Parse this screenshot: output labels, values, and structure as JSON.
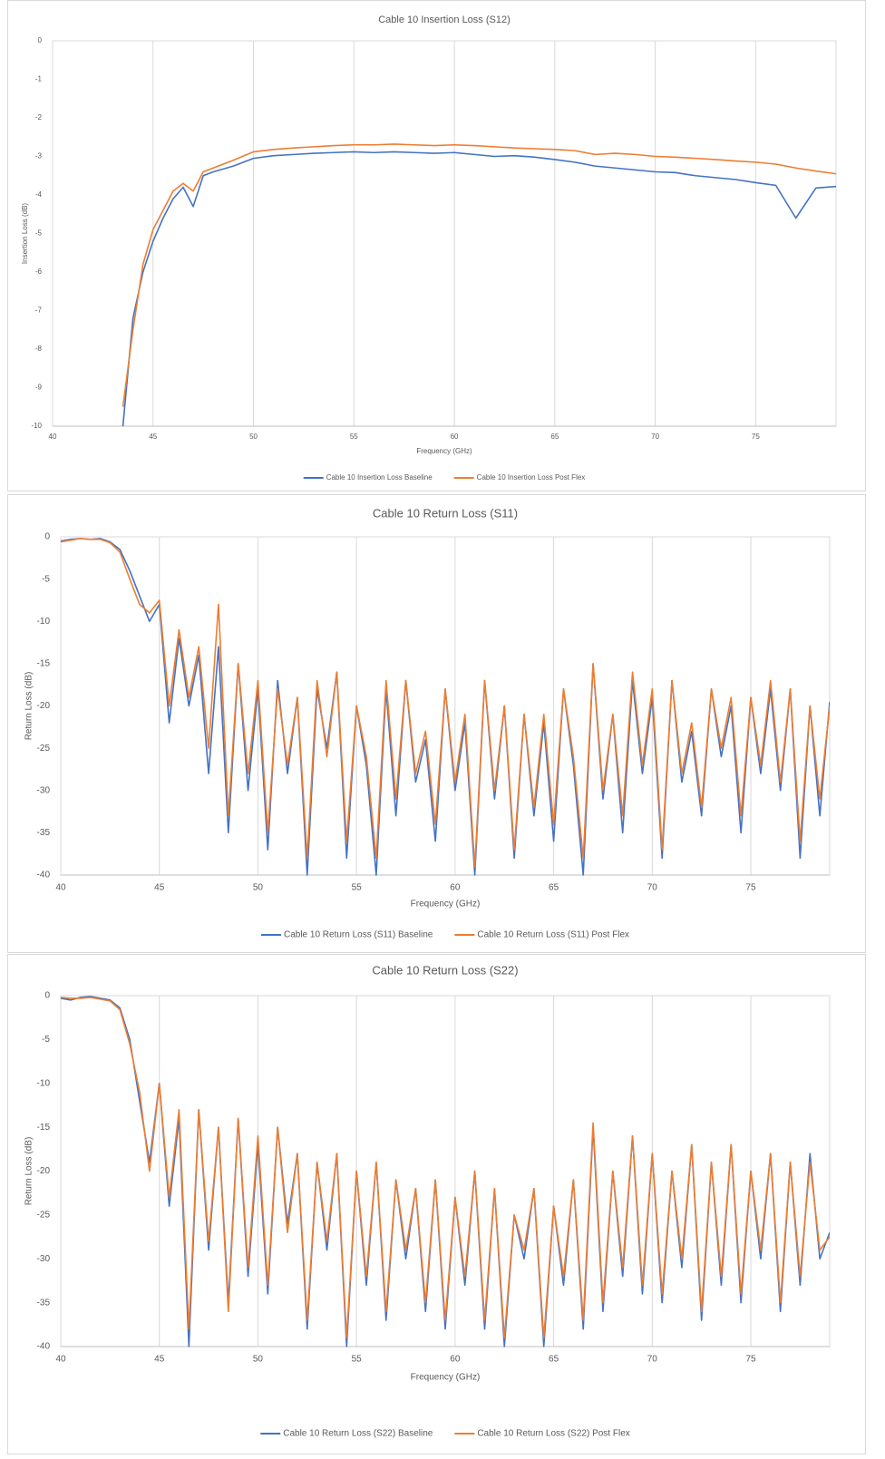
{
  "chart_data": [
    {
      "type": "line",
      "title": "Cable 10 Insertion Loss (S12)",
      "x_label": "Frequency (GHz)",
      "y_label": "Insertion Loss (dB)",
      "xlim": [
        40,
        79
      ],
      "xticks": [
        40,
        45,
        50,
        55,
        60,
        65,
        70,
        75
      ],
      "ylim": [
        -10,
        0
      ],
      "yticks": [
        0,
        -1,
        -2,
        -3,
        -4,
        -5,
        -6,
        -7,
        -8,
        -9,
        -10
      ],
      "grid": "x",
      "x": [
        43.5,
        44,
        44.5,
        45,
        45.5,
        46,
        46.5,
        47,
        47.5,
        48,
        49,
        50,
        51,
        52,
        53,
        54,
        55,
        56,
        57,
        58,
        59,
        60,
        61,
        62,
        63,
        64,
        65,
        66,
        67,
        68,
        69,
        70,
        71,
        72,
        73,
        74,
        75,
        76,
        77,
        78,
        79
      ],
      "series": [
        {
          "name": "Cable 10 Insertion Loss Baseline",
          "color": "#4472c4",
          "values": [
            -10,
            -7.2,
            -6,
            -5.2,
            -4.6,
            -4.1,
            -3.8,
            -4.3,
            -3.5,
            -3.4,
            -3.25,
            -3.05,
            -2.98,
            -2.95,
            -2.92,
            -2.9,
            -2.88,
            -2.9,
            -2.88,
            -2.9,
            -2.92,
            -2.9,
            -2.95,
            -3.0,
            -2.98,
            -3.02,
            -3.08,
            -3.15,
            -3.25,
            -3.3,
            -3.35,
            -3.4,
            -3.42,
            -3.5,
            -3.55,
            -3.6,
            -3.68,
            -3.75,
            -4.6,
            -3.82,
            -3.78
          ]
        },
        {
          "name": "Cable 10 Insertion Loss Post Flex",
          "color": "#ed7d31",
          "values": [
            -9.5,
            -7.5,
            -5.8,
            -4.9,
            -4.4,
            -3.9,
            -3.7,
            -3.9,
            -3.4,
            -3.3,
            -3.1,
            -2.88,
            -2.82,
            -2.78,
            -2.75,
            -2.72,
            -2.7,
            -2.7,
            -2.68,
            -2.7,
            -2.72,
            -2.7,
            -2.72,
            -2.75,
            -2.78,
            -2.8,
            -2.82,
            -2.85,
            -2.95,
            -2.92,
            -2.95,
            -3.0,
            -3.02,
            -3.05,
            -3.08,
            -3.12,
            -3.15,
            -3.2,
            -3.3,
            -3.38,
            -3.45
          ]
        }
      ]
    },
    {
      "type": "line",
      "title": "Cable 10 Return Loss (S11)",
      "x_label": "Frequency (GHz)",
      "y_label": "Return Loss (dB)",
      "xlim": [
        40,
        79
      ],
      "xticks": [
        40,
        45,
        50,
        55,
        60,
        65,
        70,
        75
      ],
      "ylim": [
        -40,
        0
      ],
      "yticks": [
        0,
        -5,
        -10,
        -15,
        -20,
        -25,
        -30,
        -35,
        -40
      ],
      "grid": "x",
      "x": [
        40,
        40.5,
        41,
        41.5,
        42,
        42.5,
        43,
        43.5,
        44,
        44.5,
        45,
        45.5,
        46,
        46.5,
        47,
        47.5,
        48,
        48.5,
        49,
        49.5,
        50,
        50.5,
        51,
        51.5,
        52,
        52.5,
        53,
        53.5,
        54,
        54.5,
        55,
        55.5,
        56,
        56.5,
        57,
        57.5,
        58,
        58.5,
        59,
        59.5,
        60,
        60.5,
        61,
        61.5,
        62,
        62.5,
        63,
        63.5,
        64,
        64.5,
        65,
        65.5,
        66,
        66.5,
        67,
        67.5,
        68,
        68.5,
        69,
        69.5,
        70,
        70.5,
        71,
        71.5,
        72,
        72.5,
        73,
        73.5,
        74,
        74.5,
        75,
        75.5,
        76,
        76.5,
        77,
        77.5,
        78,
        78.5,
        79
      ],
      "series": [
        {
          "name": "Cable 10 Return Loss (S11) Baseline",
          "color": "#4472c4",
          "values": [
            -0.5,
            -0.3,
            -0.2,
            -0.3,
            -0.2,
            -0.6,
            -1.5,
            -4,
            -7,
            -10,
            -8,
            -22,
            -12,
            -20,
            -14,
            -28,
            -13,
            -35,
            -15,
            -30,
            -18,
            -37,
            -17,
            -28,
            -19,
            -40,
            -18,
            -25,
            -16,
            -38,
            -20,
            -27,
            -40,
            -18,
            -33,
            -17,
            -29,
            -24,
            -36,
            -18,
            -30,
            -22,
            -40,
            -17,
            -31,
            -20,
            -38,
            -21,
            -33,
            -22,
            -36,
            -18,
            -27,
            -40,
            -15,
            -31,
            -21,
            -35,
            -17,
            -28,
            -19,
            -38,
            -17,
            -29,
            -23,
            -33,
            -18,
            -26,
            -20,
            -35,
            -19,
            -28,
            -18,
            -30,
            -18,
            -38,
            -20,
            -33,
            -19.5
          ]
        },
        {
          "name": "Cable 10 Return Loss (S11) Post Flex",
          "color": "#ed7d31",
          "values": [
            -0.6,
            -0.4,
            -0.2,
            -0.3,
            -0.3,
            -0.7,
            -1.8,
            -5,
            -8,
            -9,
            -7.5,
            -20,
            -11,
            -19,
            -13,
            -25,
            -8,
            -33,
            -15,
            -28,
            -17,
            -35,
            -18,
            -27,
            -19,
            -38,
            -17,
            -26,
            -16,
            -36,
            -20,
            -26,
            -38,
            -17,
            -31,
            -17,
            -28,
            -23,
            -34,
            -18,
            -29,
            -21,
            -39,
            -17,
            -30,
            -20,
            -37,
            -21,
            -32,
            -21,
            -34,
            -18,
            -26,
            -38,
            -15,
            -30,
            -21,
            -33,
            -16,
            -27,
            -18,
            -37,
            -17,
            -28,
            -22,
            -32,
            -18,
            -25,
            -19,
            -33,
            -19,
            -27,
            -17,
            -29,
            -18,
            -36,
            -20,
            -31,
            -20
          ]
        }
      ]
    },
    {
      "type": "line",
      "title": "Cable 10 Return Loss (S22)",
      "x_label": "Frequency (GHz)",
      "y_label": "Return Loss (dB)",
      "xlim": [
        40,
        79
      ],
      "xticks": [
        40,
        45,
        50,
        55,
        60,
        65,
        70,
        75
      ],
      "ylim": [
        -40,
        0
      ],
      "yticks": [
        0,
        -5,
        -10,
        -15,
        -20,
        -25,
        -30,
        -35,
        -40
      ],
      "grid": "x",
      "x": [
        40,
        40.5,
        41,
        41.5,
        42,
        42.5,
        43,
        43.5,
        44,
        44.5,
        45,
        45.5,
        46,
        46.5,
        47,
        47.5,
        48,
        48.5,
        49,
        49.5,
        50,
        50.5,
        51,
        51.5,
        52,
        52.5,
        53,
        53.5,
        54,
        54.5,
        55,
        55.5,
        56,
        56.5,
        57,
        57.5,
        58,
        58.5,
        59,
        59.5,
        60,
        60.5,
        61,
        61.5,
        62,
        62.5,
        63,
        63.5,
        64,
        64.5,
        65,
        65.5,
        66,
        66.5,
        67,
        67.5,
        68,
        68.5,
        69,
        69.5,
        70,
        70.5,
        71,
        71.5,
        72,
        72.5,
        73,
        73.5,
        74,
        74.5,
        75,
        75.5,
        76,
        76.5,
        77,
        77.5,
        78,
        78.5,
        79
      ],
      "series": [
        {
          "name": "Cable 10 Return Loss (S22) Baseline",
          "color": "#4472c4",
          "values": [
            -0.3,
            -0.5,
            -0.2,
            -0.1,
            -0.3,
            -0.5,
            -1.4,
            -5,
            -12,
            -19,
            -10,
            -24,
            -14,
            -40,
            -13,
            -29,
            -15,
            -35,
            -14,
            -32,
            -17,
            -34,
            -15,
            -26,
            -18,
            -38,
            -19,
            -29,
            -18,
            -40,
            -20,
            -33,
            -19,
            -37,
            -21,
            -30,
            -22,
            -36,
            -21,
            -38,
            -23,
            -33,
            -20,
            -38,
            -22,
            -40,
            -25,
            -30,
            -22,
            -40,
            -24,
            -33,
            -21,
            -38,
            -15,
            -36,
            -20,
            -32,
            -16,
            -34,
            -18,
            -35,
            -20,
            -31,
            -17,
            -37,
            -19,
            -33,
            -17,
            -35,
            -20,
            -30,
            -18,
            -36,
            -19,
            -33,
            -18,
            -30,
            -27
          ]
        },
        {
          "name": "Cable 10 Return Loss (S22) Post Flex",
          "color": "#ed7d31",
          "values": [
            -0.2,
            -0.3,
            -0.3,
            -0.2,
            -0.4,
            -0.6,
            -1.6,
            -5.5,
            -11,
            -20,
            -10,
            -23,
            -13,
            -38,
            -13,
            -28,
            -15,
            -36,
            -14,
            -31,
            -16,
            -33,
            -15,
            -27,
            -18,
            -37,
            -19,
            -28,
            -18,
            -39,
            -20,
            -32,
            -19,
            -36,
            -21,
            -29,
            -22,
            -35,
            -21,
            -37,
            -23,
            -32,
            -20,
            -37,
            -22,
            -39,
            -25,
            -29,
            -22,
            -39,
            -24,
            -32,
            -21,
            -37,
            -14.5,
            -35,
            -20,
            -31,
            -16,
            -33,
            -18,
            -34,
            -20,
            -30,
            -17,
            -36,
            -19,
            -32,
            -17,
            -34,
            -20,
            -29,
            -18,
            -35,
            -19,
            -32,
            -19,
            -29,
            -27.5
          ]
        }
      ]
    }
  ]
}
